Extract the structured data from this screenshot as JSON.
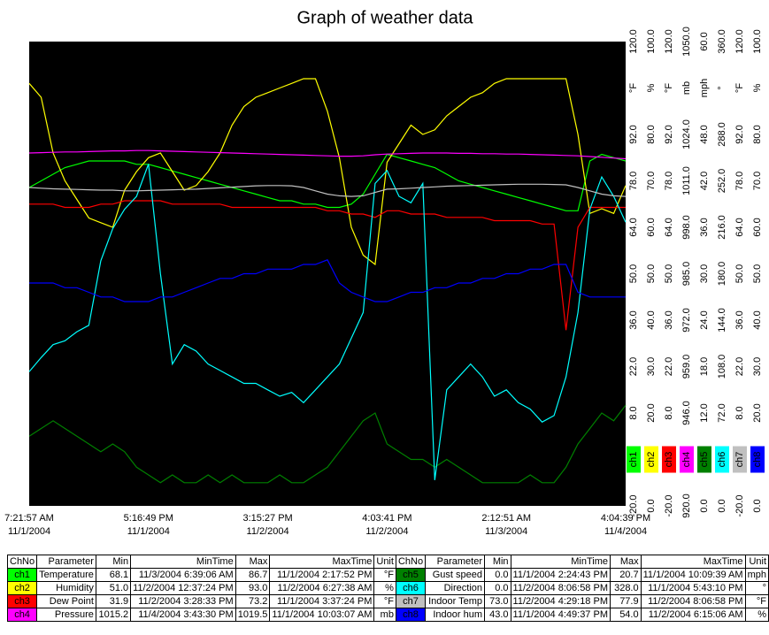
{
  "chart_data": {
    "type": "line",
    "title": "Graph of weather data",
    "xlim": [
      0,
      50
    ],
    "xticks": [
      {
        "value": 0,
        "label": [
          "7:21:57 AM",
          "11/1/2004"
        ]
      },
      {
        "value": 10,
        "label": [
          "5:16:49 PM",
          "11/1/2004"
        ]
      },
      {
        "value": 20,
        "label": [
          "3:15:27 PM",
          "11/2/2004"
        ]
      },
      {
        "value": 30,
        "label": [
          "4:03:41 PM",
          "11/2/2004"
        ]
      },
      {
        "value": 40,
        "label": [
          "2:12:51 AM",
          "11/3/2004"
        ]
      },
      {
        "value": 50,
        "label": [
          "4:04:39 PM",
          "11/4/2004"
        ]
      }
    ],
    "series": [
      {
        "name": "ch1",
        "color": "#00ff00",
        "unit": "°F",
        "ylim": [
          -20,
          120
        ],
        "yticks": [
          {
            "value": 120,
            "label": "120.0"
          },
          {
            "value": 92,
            "label": "92.0"
          },
          {
            "value": 78,
            "label": "78.0"
          },
          {
            "value": 64,
            "label": "64.0"
          },
          {
            "value": 50,
            "label": "50.0"
          },
          {
            "value": 36,
            "label": "36.0"
          },
          {
            "value": 22,
            "label": "22.0"
          },
          {
            "value": 8,
            "label": "8.0"
          },
          {
            "value": -20,
            "label": "-20.0"
          }
        ],
        "values": [
          76,
          78,
          80,
          82,
          83,
          84,
          84,
          84,
          84,
          83,
          83,
          82,
          81,
          80,
          79,
          78,
          77,
          76,
          75,
          74,
          73,
          72,
          72,
          71,
          71,
          70,
          70,
          71,
          74,
          80,
          86,
          85,
          84,
          83,
          82,
          80,
          78,
          77,
          76,
          75,
          74,
          73,
          72,
          71,
          70,
          69,
          69,
          84,
          86,
          85,
          84
        ]
      },
      {
        "name": "ch2",
        "color": "#ffff00",
        "unit": "%",
        "ylim": [
          0,
          100
        ],
        "yticks": [
          {
            "value": 100,
            "label": "100.0"
          },
          {
            "value": 80,
            "label": "80.0"
          },
          {
            "value": 70,
            "label": "70.0"
          },
          {
            "value": 60,
            "label": "60.0"
          },
          {
            "value": 50,
            "label": "50.0"
          },
          {
            "value": 40,
            "label": "40.0"
          },
          {
            "value": 30,
            "label": "30.0"
          },
          {
            "value": 20,
            "label": "20.0"
          },
          {
            "value": 0,
            "label": "0.0"
          }
        ],
        "values": [
          91,
          88,
          76,
          70,
          66,
          62,
          61,
          60,
          68,
          72,
          75,
          76,
          72,
          68,
          69,
          72,
          76,
          82,
          86,
          88,
          89,
          90,
          91,
          92,
          92,
          85,
          75,
          60,
          54,
          52,
          74,
          78,
          82,
          80,
          81,
          84,
          86,
          88,
          89,
          91,
          92,
          92,
          92,
          92,
          92,
          92,
          80,
          63,
          64,
          63,
          69
        ]
      },
      {
        "name": "ch3",
        "color": "#ff0000",
        "unit": "°F",
        "ylim": [
          -20,
          120
        ],
        "yticks": [
          {
            "value": 120,
            "label": "120.0"
          },
          {
            "value": 92,
            "label": "92.0"
          },
          {
            "value": 78,
            "label": "78.0"
          },
          {
            "value": 64,
            "label": "64.0"
          },
          {
            "value": 50,
            "label": "50.0"
          },
          {
            "value": 36,
            "label": "36.0"
          },
          {
            "value": 22,
            "label": "22.0"
          },
          {
            "value": 8,
            "label": "8.0"
          },
          {
            "value": -20,
            "label": "-20.0"
          }
        ],
        "values": [
          71,
          71,
          71,
          70,
          70,
          70,
          71,
          71,
          72,
          72,
          72,
          72,
          71,
          71,
          71,
          71,
          71,
          70,
          70,
          70,
          70,
          70,
          70,
          70,
          70,
          69,
          69,
          68,
          68,
          67,
          69,
          69,
          68,
          68,
          68,
          67,
          67,
          67,
          67,
          66,
          66,
          66,
          66,
          65,
          65,
          33,
          64,
          70,
          70,
          70,
          70
        ]
      },
      {
        "name": "ch4",
        "color": "#ff00ff",
        "unit": "mb",
        "ylim": [
          920,
          1050
        ],
        "yticks": [
          {
            "value": 1050,
            "label": "1050.0"
          },
          {
            "value": 1024,
            "label": "1024.0"
          },
          {
            "value": 1011,
            "label": "1011.0"
          },
          {
            "value": 998,
            "label": "998.0"
          },
          {
            "value": 985,
            "label": "985.0"
          },
          {
            "value": 972,
            "label": "972.0"
          },
          {
            "value": 959,
            "label": "959.0"
          },
          {
            "value": 946,
            "label": "946.0"
          },
          {
            "value": 920,
            "label": "920.0"
          }
        ],
        "values": [
          1018.8,
          1018.9,
          1019.0,
          1019.1,
          1019.1,
          1019.2,
          1019.3,
          1019.4,
          1019.4,
          1019.5,
          1019.5,
          1019.4,
          1019.3,
          1019.2,
          1019.1,
          1019.0,
          1018.9,
          1018.8,
          1018.7,
          1018.6,
          1018.5,
          1018.4,
          1018.3,
          1018.2,
          1018.1,
          1018.0,
          1017.9,
          1017.9,
          1018.0,
          1018.3,
          1018.5,
          1018.6,
          1018.7,
          1018.8,
          1018.8,
          1018.8,
          1018.7,
          1018.7,
          1018.6,
          1018.6,
          1018.5,
          1018.5,
          1018.4,
          1018.3,
          1018.2,
          1018.1,
          1018.0,
          1017.8,
          1017.6,
          1017.4,
          1017.2
        ]
      },
      {
        "name": "ch5",
        "color": "#008000",
        "unit": "mph",
        "ylim": [
          0,
          60
        ],
        "yticks": [
          {
            "value": 60,
            "label": "60.0"
          },
          {
            "value": 48,
            "label": "48.0"
          },
          {
            "value": 42,
            "label": "42.0"
          },
          {
            "value": 36,
            "label": "36.0"
          },
          {
            "value": 30,
            "label": "30.0"
          },
          {
            "value": 24,
            "label": "24.0"
          },
          {
            "value": 18,
            "label": "18.0"
          },
          {
            "value": 12,
            "label": "12.0"
          },
          {
            "value": 0,
            "label": "0.0"
          }
        ],
        "values": [
          9,
          10,
          11,
          10,
          9,
          8,
          7,
          8,
          7,
          5,
          4,
          3,
          4,
          3,
          3,
          4,
          3,
          4,
          3,
          3,
          3,
          4,
          3,
          3,
          4,
          5,
          7,
          9,
          11,
          12,
          8,
          7,
          6,
          6,
          5,
          6,
          5,
          4,
          3,
          3,
          3,
          3,
          4,
          3,
          3,
          5,
          8,
          10,
          12,
          11,
          13
        ]
      },
      {
        "name": "ch6",
        "color": "#00ffff",
        "unit": "°",
        "ylim": [
          0,
          360
        ],
        "yticks": [
          {
            "value": 360,
            "label": "360.0"
          },
          {
            "value": 288,
            "label": "288.0"
          },
          {
            "value": 252,
            "label": "252.0"
          },
          {
            "value": 216,
            "label": "216.0"
          },
          {
            "value": 180,
            "label": "180.0"
          },
          {
            "value": 144,
            "label": "144.0"
          },
          {
            "value": 108,
            "label": "108.0"
          },
          {
            "value": 72,
            "label": "72.0"
          },
          {
            "value": 0,
            "label": "0.0"
          }
        ],
        "values": [
          104,
          115,
          125,
          128,
          135,
          140,
          190,
          215,
          230,
          240,
          265,
          180,
          110,
          125,
          120,
          110,
          105,
          100,
          95,
          95,
          90,
          85,
          88,
          80,
          90,
          100,
          110,
          130,
          150,
          250,
          260,
          240,
          235,
          250,
          20,
          90,
          100,
          110,
          100,
          85,
          90,
          80,
          75,
          65,
          70,
          100,
          150,
          230,
          255,
          240,
          220
        ]
      },
      {
        "name": "ch7",
        "color": "#c0c0c0",
        "unit": "°F",
        "ylim": [
          -20,
          120
        ],
        "yticks": [
          {
            "value": 120,
            "label": "120.0"
          },
          {
            "value": 92,
            "label": "92.0"
          },
          {
            "value": 78,
            "label": "78.0"
          },
          {
            "value": 64,
            "label": "64.0"
          },
          {
            "value": 50,
            "label": "50.0"
          },
          {
            "value": 36,
            "label": "36.0"
          },
          {
            "value": 22,
            "label": "22.0"
          },
          {
            "value": 8,
            "label": "8.0"
          },
          {
            "value": -20,
            "label": "-20.0"
          }
        ],
        "values": [
          76.0,
          75.8,
          75.6,
          75.5,
          75.4,
          75.3,
          75.2,
          75.2,
          75.0,
          75.0,
          75.1,
          75.2,
          75.3,
          75.4,
          75.5,
          75.7,
          75.9,
          76.1,
          76.3,
          76.5,
          76.6,
          76.6,
          76.5,
          76.0,
          75.0,
          74.0,
          73.5,
          73.3,
          73.5,
          74.5,
          75.5,
          75.6,
          75.8,
          76.0,
          76.2,
          76.4,
          76.5,
          76.6,
          76.7,
          76.8,
          76.9,
          77.0,
          77.0,
          77.0,
          76.9,
          76.8,
          76.0,
          75.0,
          74.0,
          73.5,
          73.3
        ]
      },
      {
        "name": "ch8",
        "color": "#0000ff",
        "unit": "%",
        "ylim": [
          0,
          100
        ],
        "yticks": [
          {
            "value": 100,
            "label": "100.0"
          },
          {
            "value": 80,
            "label": "80.0"
          },
          {
            "value": 70,
            "label": "70.0"
          },
          {
            "value": 60,
            "label": "60.0"
          },
          {
            "value": 50,
            "label": "50.0"
          },
          {
            "value": 40,
            "label": "40.0"
          },
          {
            "value": 30,
            "label": "30.0"
          },
          {
            "value": 20,
            "label": "20.0"
          },
          {
            "value": 0,
            "label": "0.0"
          }
        ],
        "values": [
          48,
          48,
          48,
          47,
          47,
          46,
          45,
          45,
          44,
          44,
          44,
          45,
          45,
          46,
          47,
          48,
          49,
          49,
          50,
          50,
          51,
          51,
          51,
          52,
          52,
          53,
          48,
          46,
          45,
          44,
          44,
          45,
          46,
          46,
          47,
          47,
          48,
          48,
          49,
          49,
          50,
          50,
          51,
          51,
          52,
          52,
          46,
          45,
          45,
          45,
          45
        ]
      }
    ]
  },
  "table": {
    "header": [
      "ChNo",
      "Parameter",
      "Min",
      "MinTime",
      "Max",
      "MaxTime",
      "Unit",
      "ChNo",
      "Parameter",
      "Min",
      "MinTime",
      "Max",
      "MaxTime",
      "Unit"
    ],
    "rows": [
      [
        "ch1",
        "Temperature",
        "68.1",
        "11/3/2004 6:39:06 AM",
        "86.7",
        "11/1/2004 2:17:52 PM",
        "°F",
        "ch5",
        "Gust speed",
        "0.0",
        "11/1/2004 2:24:43 PM",
        "20.7",
        "11/1/2004 10:09:39 AM",
        "mph"
      ],
      [
        "ch2",
        "Humidity",
        "51.0",
        "11/2/2004 12:37:24 PM",
        "93.0",
        "11/2/2004 6:27:38 AM",
        "%",
        "ch6",
        "Direction",
        "0.0",
        "11/2/2004 8:06:58 PM",
        "328.0",
        "11/1/2004 5:43:10 PM",
        "°"
      ],
      [
        "ch3",
        "Dew Point",
        "31.9",
        "11/2/2004 3:28:33 PM",
        "73.2",
        "11/1/2004 3:37:24 PM",
        "°F",
        "ch7",
        "Indoor Temp",
        "73.0",
        "11/2/2004 4:29:18 PM",
        "77.9",
        "11/2/2004 8:06:58 PM",
        "°F"
      ],
      [
        "ch4",
        "Pressure",
        "1015.2",
        "11/4/2004 3:43:30 PM",
        "1019.5",
        "11/1/2004 10:03:07 AM",
        "mb",
        "ch8",
        "Indoor hum",
        "43.0",
        "11/1/2004 4:49:37 PM",
        "54.0",
        "11/2/2004 6:15:06 AM",
        "%"
      ]
    ]
  }
}
